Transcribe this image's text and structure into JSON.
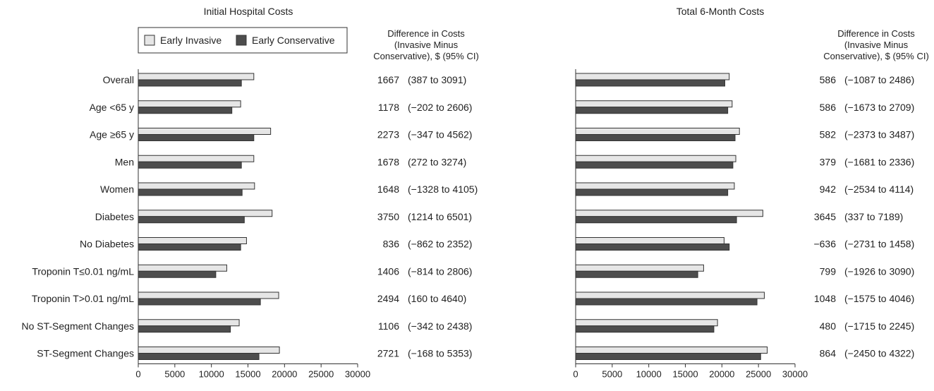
{
  "chart_data": [
    {
      "type": "bar",
      "orientation": "horizontal",
      "title": "Initial Hospital Costs",
      "xlim": [
        0,
        30000
      ],
      "xticks": [
        "0",
        "5000",
        "10000",
        "15000",
        "20000",
        "25000",
        "30000"
      ],
      "legend": {
        "placement": "top-left",
        "entries": [
          "Early Invasive",
          "Early Conservative"
        ]
      },
      "diff_header": [
        "Difference in Costs",
        "(Invasive Minus",
        "Conservative), $ (95% CI)"
      ],
      "categories": [
        "Overall",
        "Age <65 y",
        "Age ≥65 y",
        "Men",
        "Women",
        "Diabetes",
        "No Diabetes",
        "Troponin T≤0.01 ng/mL",
        "Troponin T>0.01 ng/mL",
        "No ST-Segment Changes",
        "ST-Segment Changes"
      ],
      "series": [
        {
          "name": "Early Invasive",
          "color": "#e6e6e6",
          "values": [
            15800,
            14000,
            18100,
            15800,
            15900,
            18300,
            14800,
            12100,
            19200,
            13800,
            19300
          ]
        },
        {
          "name": "Early Conservative",
          "color": "#4d4d4d",
          "values": [
            14100,
            12800,
            15800,
            14100,
            14200,
            14500,
            14000,
            10600,
            16700,
            12600,
            16500
          ]
        }
      ],
      "diff": [
        "1667",
        "1178",
        "2273",
        "1678",
        "1648",
        "3750",
        "836",
        "1406",
        "2494",
        "1106",
        "2721"
      ],
      "ci": [
        "(387 to 3091)",
        "(−202 to 2606)",
        "(−347 to 4562)",
        "(272 to 3274)",
        "(−1328 to 4105)",
        "(1214 to 6501)",
        "(−862 to 2352)",
        "(−814 to 2806)",
        "(160 to 4640)",
        "(−342 to 2438)",
        "(−168 to 5353)"
      ],
      "grid": false
    },
    {
      "type": "bar",
      "orientation": "horizontal",
      "title": "Total 6-Month Costs",
      "xlim": [
        0,
        30000
      ],
      "xticks": [
        "0",
        "5000",
        "10000",
        "15000",
        "20000",
        "25000",
        "30000"
      ],
      "diff_header": [
        "Difference in Costs",
        "(Invasive Minus",
        "Conservative), $ (95% CI)"
      ],
      "categories": [
        "Overall",
        "Age <65 y",
        "Age ≥65 y",
        "Men",
        "Women",
        "Diabetes",
        "No Diabetes",
        "Troponin T≤0.01 ng/mL",
        "Troponin T>0.01 ng/mL",
        "No ST-Segment Changes",
        "ST-Segment Changes"
      ],
      "series": [
        {
          "name": "Early Invasive",
          "color": "#e6e6e6",
          "values": [
            21000,
            21400,
            22400,
            21900,
            21700,
            25600,
            20300,
            17500,
            25800,
            19400,
            26200
          ]
        },
        {
          "name": "Early Conservative",
          "color": "#4d4d4d",
          "values": [
            20400,
            20800,
            21800,
            21500,
            20800,
            22000,
            21000,
            16700,
            24800,
            18900,
            25300
          ]
        }
      ],
      "diff": [
        "586",
        "586",
        "582",
        "379",
        "942",
        "3645",
        "−636",
        "799",
        "1048",
        "480",
        "864"
      ],
      "ci": [
        "(−1087 to 2486)",
        "(−1673 to 2709)",
        "(−2373 to 3487)",
        "(−1681 to 2336)",
        "(−2534 to 4114)",
        "(337 to 7189)",
        "(−2731 to 1458)",
        "(−1926 to 3090)",
        "(−1575 to 4046)",
        "(−1715 to 2245)",
        "(−2450 to 4322)"
      ],
      "grid": false
    }
  ]
}
